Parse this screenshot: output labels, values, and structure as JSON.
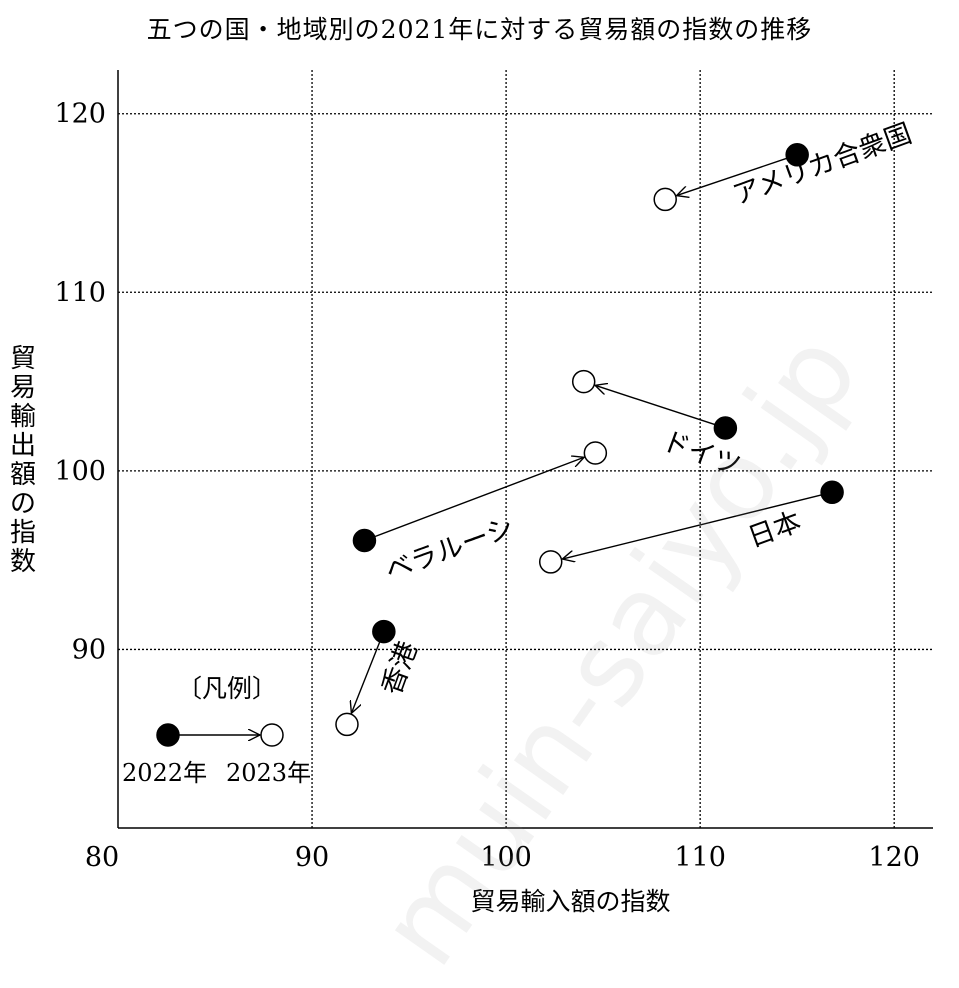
{
  "chart_data": {
    "type": "scatter",
    "title": "五つの国・地域別の2021年に対する貿易額の指数の推移",
    "xlabel": "貿易輸入額の指数",
    "ylabel": "貿易輸出額の指数",
    "xlim": [
      80,
      122
    ],
    "ylim": [
      80,
      122
    ],
    "xticks": [
      80,
      90,
      100,
      110,
      120
    ],
    "yticks": [
      90,
      100,
      110,
      120
    ],
    "grid": true,
    "series": [
      {
        "name": "アメリカ合衆国",
        "from": {
          "x": 115.0,
          "y": 117.7
        },
        "to": {
          "x": 108.2,
          "y": 115.2
        }
      },
      {
        "name": "ドイツ",
        "from": {
          "x": 111.3,
          "y": 102.4
        },
        "to": {
          "x": 104.0,
          "y": 105.0
        }
      },
      {
        "name": "ベラルーシ",
        "from": {
          "x": 92.7,
          "y": 96.1
        },
        "to": {
          "x": 104.6,
          "y": 101.0
        }
      },
      {
        "name": "日本",
        "from": {
          "x": 116.8,
          "y": 98.8
        },
        "to": {
          "x": 102.3,
          "y": 94.9
        }
      },
      {
        "name": "香港",
        "from": {
          "x": 93.7,
          "y": 91.0
        },
        "to": {
          "x": 91.8,
          "y": 85.8
        }
      }
    ],
    "legend": {
      "title": "〔凡例〕",
      "from_label": "2022年",
      "to_label": "2023年",
      "placement": "bottom-left"
    }
  },
  "watermark": "muin-saiyo.jp"
}
